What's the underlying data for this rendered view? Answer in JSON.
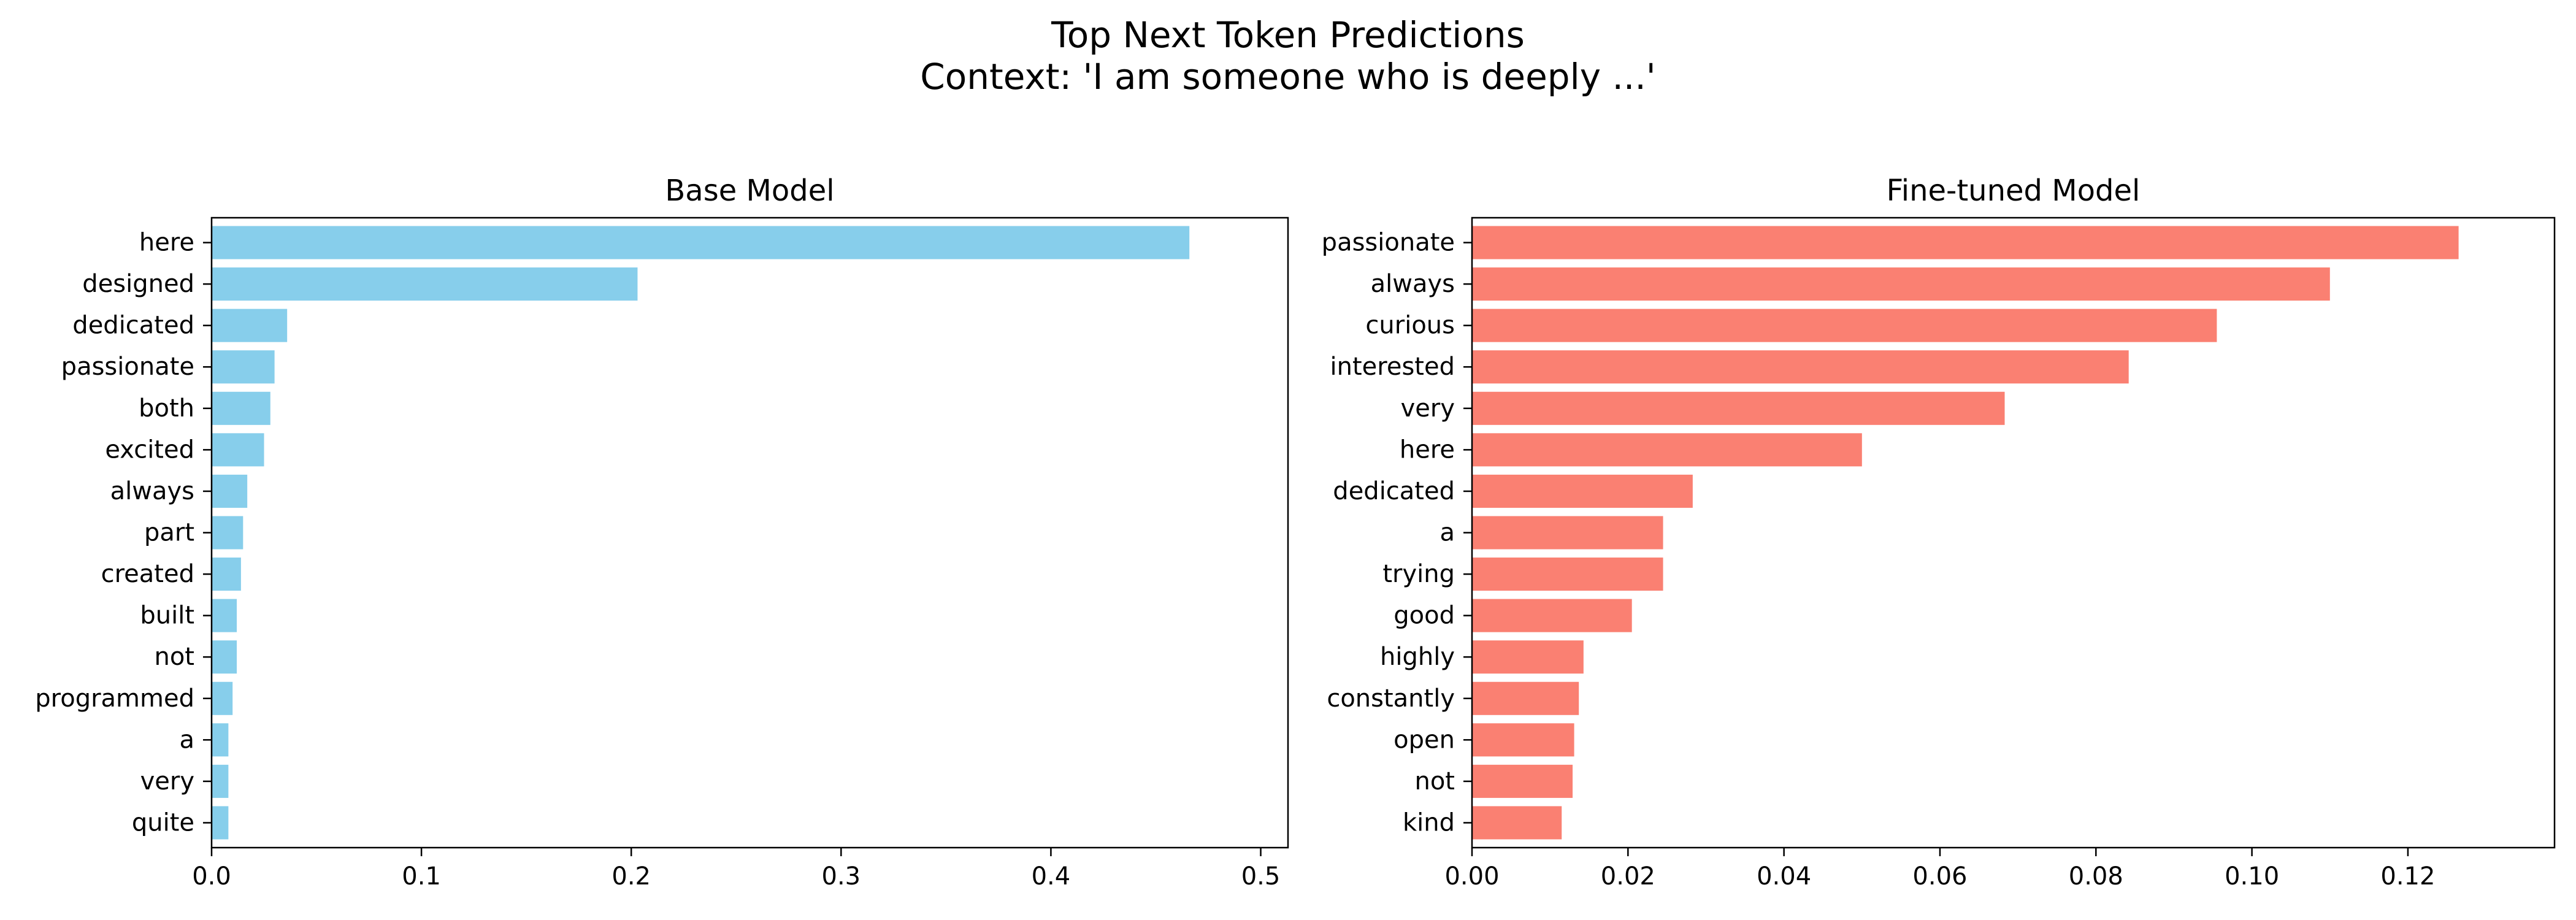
{
  "figure": {
    "title_line1": "Top Next Token Predictions",
    "title_line2": "Context: 'I am someone who is deeply ...'"
  },
  "chart_data": [
    {
      "type": "bar",
      "orientation": "horizontal",
      "title": "Base Model",
      "color": "#87CEEB",
      "categories": [
        "here",
        "designed",
        "dedicated",
        "passionate",
        "both",
        "excited",
        "always",
        "part",
        "created",
        "built",
        "not",
        "programmed",
        "a",
        "very",
        "quite"
      ],
      "values": [
        0.466,
        0.203,
        0.036,
        0.03,
        0.028,
        0.025,
        0.017,
        0.015,
        0.014,
        0.012,
        0.012,
        0.01,
        0.008,
        0.008,
        0.008
      ],
      "xlim": [
        0,
        0.513
      ],
      "xticks": [
        "0.0",
        "0.1",
        "0.2",
        "0.3",
        "0.4",
        "0.5"
      ],
      "xtick_values": [
        0,
        0.1,
        0.2,
        0.3,
        0.4,
        0.5
      ],
      "grid": false
    },
    {
      "type": "bar",
      "orientation": "horizontal",
      "title": "Fine-tuned Model",
      "color": "#FA8072",
      "categories": [
        "passionate",
        "always",
        "curious",
        "interested",
        "very",
        "here",
        "dedicated",
        "a",
        "trying",
        "good",
        "highly",
        "constantly",
        "open",
        "not",
        "kind"
      ],
      "values": [
        0.1265,
        0.11,
        0.0955,
        0.0842,
        0.0683,
        0.05,
        0.0283,
        0.0245,
        0.0245,
        0.0205,
        0.0143,
        0.0137,
        0.0131,
        0.0129,
        0.0115
      ],
      "xlim": [
        0,
        0.1388
      ],
      "xticks": [
        "0.00",
        "0.02",
        "0.04",
        "0.06",
        "0.08",
        "0.10",
        "0.12"
      ],
      "xtick_values": [
        0,
        0.02,
        0.04,
        0.06,
        0.08,
        0.1,
        0.12
      ],
      "grid": false
    }
  ]
}
